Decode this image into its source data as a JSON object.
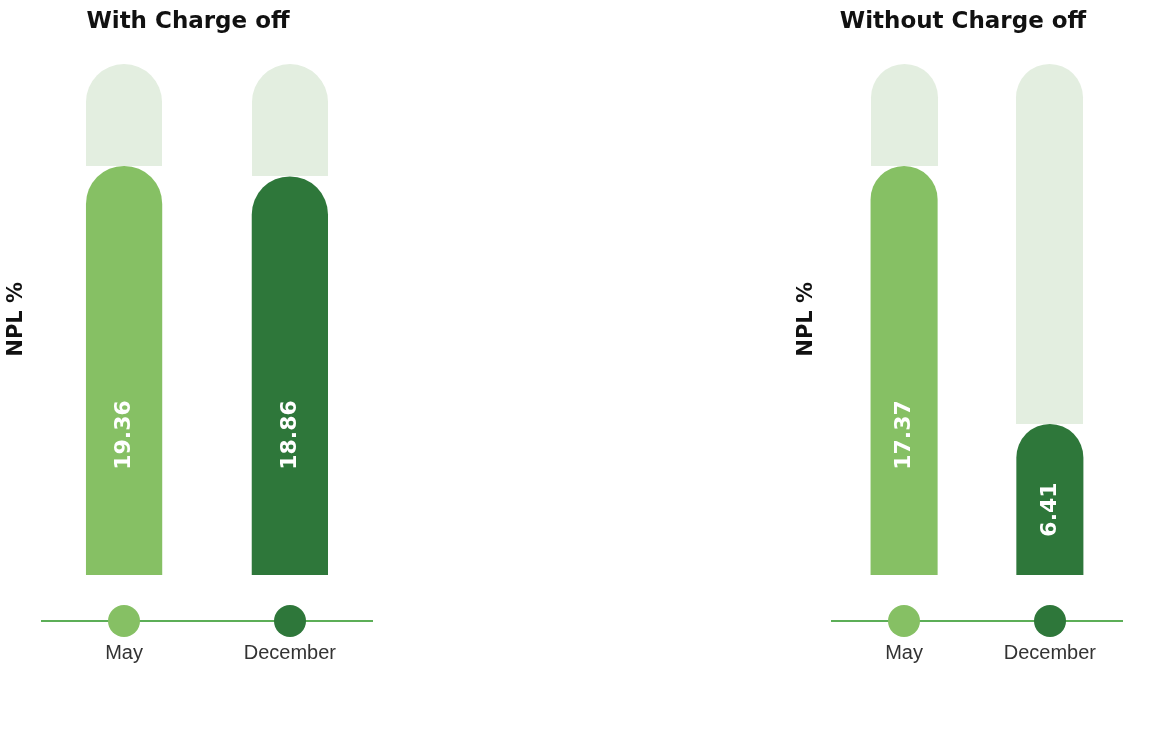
{
  "chart_data": [
    {
      "type": "bar",
      "title": "With Charge off",
      "ylabel": "NPL %",
      "categories": [
        "May",
        "December"
      ],
      "values": [
        19.36,
        18.86
      ],
      "colors": [
        "#86c064",
        "#2e773a"
      ],
      "data_labels": true
    },
    {
      "type": "bar",
      "title": "Without Charge off",
      "ylabel": "NPL %",
      "categories": [
        "May",
        "December"
      ],
      "values": [
        17.37,
        6.41
      ],
      "colors": [
        "#86c064",
        "#2e773a"
      ],
      "data_labels": true
    }
  ]
}
